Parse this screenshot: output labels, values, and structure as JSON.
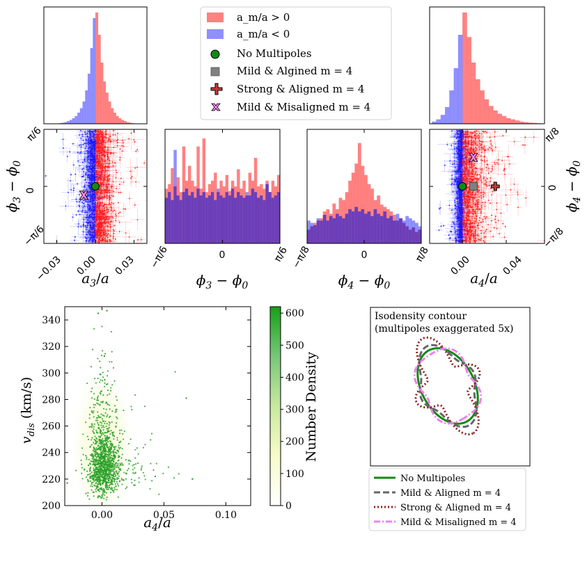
{
  "colors": {
    "pos": "#ff6b6b",
    "neg": "#7b7bff",
    "overlap": "#6a3cb5",
    "pos_points": "#ff1a1a",
    "neg_points": "#1a1aff",
    "green": "#138a13",
    "gray": "#808080",
    "darkred": "#8b2020",
    "violet": "#ee82ee",
    "scatter": "#2ca02c"
  },
  "legend_top": {
    "items": [
      {
        "label": "a_m/a > 0",
        "marker": "red-patch"
      },
      {
        "label": "a_m/a < 0",
        "marker": "blue-patch"
      },
      {
        "label": "No Multipoles",
        "marker": "green-circle"
      },
      {
        "label": "Mild & Algined m = 4",
        "marker": "gray-square"
      },
      {
        "label": "Strong & Aligned m = 4",
        "marker": "darkred-plus"
      },
      {
        "label": "Mild & Misaligned m = 4",
        "marker": "violet-x"
      }
    ]
  },
  "chart_data": [
    {
      "id": "hist_a3",
      "type": "bar",
      "title": "",
      "series": [
        {
          "name": "a_m/a > 0",
          "x": [
            0.0,
            0.002,
            0.004,
            0.006,
            0.008,
            0.01,
            0.012,
            0.014,
            0.016,
            0.018,
            0.02,
            0.022,
            0.024,
            0.026,
            0.028,
            0.03
          ],
          "values": [
            1.0,
            0.8,
            0.55,
            0.38,
            0.28,
            0.2,
            0.14,
            0.1,
            0.07,
            0.05,
            0.035,
            0.025,
            0.015,
            0.01,
            0.006,
            0.003
          ]
        },
        {
          "name": "a_m/a < 0",
          "x": [
            -0.002,
            -0.004,
            -0.006,
            -0.008,
            -0.01,
            -0.012,
            -0.014,
            -0.016,
            -0.018,
            -0.02,
            -0.022,
            -0.024,
            -0.026,
            -0.028,
            -0.03
          ],
          "values": [
            0.95,
            0.68,
            0.45,
            0.3,
            0.2,
            0.14,
            0.1,
            0.07,
            0.05,
            0.035,
            0.025,
            0.015,
            0.01,
            0.006,
            0.003
          ]
        }
      ],
      "xlim": [
        -0.04,
        0.04
      ]
    },
    {
      "id": "hist_a4",
      "type": "bar",
      "title": "",
      "series": [
        {
          "name": "a_m/a > 0",
          "x": [
            0.0,
            0.004,
            0.008,
            0.012,
            0.016,
            0.02,
            0.024,
            0.028,
            0.032,
            0.036,
            0.04,
            0.044,
            0.048,
            0.052,
            0.056,
            0.06,
            0.064,
            0.068,
            0.072
          ],
          "values": [
            1.0,
            0.78,
            0.55,
            0.4,
            0.3,
            0.22,
            0.16,
            0.12,
            0.09,
            0.07,
            0.05,
            0.04,
            0.03,
            0.02,
            0.015,
            0.01,
            0.008,
            0.005,
            0.003
          ]
        },
        {
          "name": "a_m/a < 0",
          "x": [
            -0.004,
            -0.008,
            -0.012,
            -0.016,
            -0.02,
            -0.024,
            -0.028
          ],
          "values": [
            0.8,
            0.5,
            0.3,
            0.15,
            0.08,
            0.04,
            0.02
          ]
        }
      ],
      "xlim": [
        -0.03,
        0.075
      ]
    },
    {
      "id": "scatter_a3_phi3",
      "type": "scatter",
      "xlabel": "a_3/a",
      "ylabel": "φ_3 − φ_0",
      "xlim": [
        -0.04,
        0.04
      ],
      "ylim": [
        -0.5236,
        0.5236
      ],
      "xticks": [
        "−0.03",
        "0.00",
        "0.03"
      ],
      "yticks": [
        "−π/6",
        "0",
        "π/6"
      ],
      "markers": [
        {
          "name": "No Multipoles",
          "x": 0.0,
          "y": 0.0,
          "marker": "green-circle"
        },
        {
          "name": "Mild & Misaligned m = 4",
          "x": -0.009,
          "y": -0.08,
          "marker": "violet-x"
        }
      ]
    },
    {
      "id": "hist_phi3",
      "type": "bar",
      "xlabel": "φ_3 − φ_0",
      "xlim": [
        -0.5236,
        0.5236
      ],
      "xticks": [
        "−π/6",
        "0",
        "π/6"
      ],
      "series": [
        {
          "name": "a_m/a > 0",
          "values": [
            0.48,
            0.52,
            0.66,
            0.5,
            0.58,
            0.45,
            0.85,
            0.55,
            0.68,
            0.55,
            0.5,
            0.85,
            0.48,
            0.92,
            0.45,
            0.52,
            0.55,
            0.62,
            0.45,
            0.55,
            0.5,
            0.6,
            0.46,
            0.55,
            0.5,
            0.65,
            0.48,
            0.55,
            0.42,
            0.62,
            0.55,
            0.75,
            0.5,
            0.52,
            0.48,
            0.55,
            0.45,
            0.55,
            0.5,
            0.6
          ]
        },
        {
          "name": "a_m/a < 0",
          "values": [
            0.4,
            0.45,
            0.38,
            0.82,
            0.42,
            0.38,
            0.45,
            0.48,
            0.42,
            0.45,
            0.4,
            0.48,
            0.42,
            0.45,
            0.4,
            0.42,
            0.45,
            0.38,
            0.48,
            0.42,
            0.4,
            0.45,
            0.42,
            0.48,
            0.4,
            0.45,
            0.42,
            0.4,
            0.45,
            0.42,
            0.48,
            0.45,
            0.4,
            0.42,
            0.38,
            0.52,
            0.45,
            0.4,
            0.42,
            0.45
          ]
        }
      ]
    },
    {
      "id": "hist_phi4",
      "type": "bar",
      "xlabel": "φ_4 − φ_0",
      "xlim": [
        -0.3927,
        0.3927
      ],
      "xticks": [
        "−π/8",
        "0",
        "π/8"
      ],
      "series": [
        {
          "name": "a_m/a > 0",
          "values": [
            0.12,
            0.15,
            0.18,
            0.2,
            0.22,
            0.28,
            0.3,
            0.26,
            0.35,
            0.3,
            0.4,
            0.38,
            0.45,
            0.55,
            0.62,
            0.7,
            0.88,
            0.68,
            0.6,
            0.52,
            0.48,
            0.38,
            0.42,
            0.34,
            0.32,
            0.3,
            0.28,
            0.25,
            0.2,
            0.22,
            0.18,
            0.15,
            0.12,
            0.14,
            0.1,
            0.12
          ]
        },
        {
          "name": "a_m/a < 0",
          "values": [
            0.2,
            0.18,
            0.16,
            0.22,
            0.2,
            0.25,
            0.2,
            0.24,
            0.22,
            0.26,
            0.24,
            0.22,
            0.26,
            0.3,
            0.28,
            0.32,
            0.28,
            0.3,
            0.26,
            0.28,
            0.24,
            0.3,
            0.26,
            0.24,
            0.28,
            0.22,
            0.24,
            0.2,
            0.26,
            0.22,
            0.2,
            0.24,
            0.22,
            0.2,
            0.18,
            0.15
          ]
        }
      ]
    },
    {
      "id": "scatter_a4_phi4",
      "type": "scatter",
      "xlabel": "a_4/a",
      "ylabel": "φ_4 − φ_0",
      "xlim": [
        -0.03,
        0.075
      ],
      "ylim": [
        -0.3927,
        0.3927
      ],
      "xticks": [
        "0.00",
        "0.04"
      ],
      "yticks": [
        "−π/8",
        "0",
        "π/8"
      ],
      "markers": [
        {
          "name": "No Multipoles",
          "x": 0.0,
          "y": 0.0,
          "marker": "green-circle"
        },
        {
          "name": "Mild & Algined m = 4",
          "x": 0.01,
          "y": 0.0,
          "marker": "gray-square"
        },
        {
          "name": "Strong & Aligned m = 4",
          "x": 0.03,
          "y": 0.0,
          "marker": "darkred-plus"
        },
        {
          "name": "Mild & Misaligned m = 4",
          "x": 0.01,
          "y": 0.2,
          "marker": "violet-x"
        }
      ]
    },
    {
      "id": "scatter_a4_vdis",
      "type": "scatter",
      "xlabel": "a_4/a",
      "ylabel": "v_dis (km/s)",
      "xlim": [
        -0.03,
        0.12
      ],
      "ylim": [
        200,
        350
      ],
      "xticks": [
        "0.00",
        "0.05",
        "0.10"
      ],
      "yticks": [
        "200",
        "220",
        "240",
        "260",
        "280",
        "300",
        "320",
        "340"
      ],
      "colorbar": {
        "label": "Number Density",
        "ticks": [
          "0",
          "100",
          "200",
          "300",
          "400",
          "500",
          "600"
        ],
        "range": [
          0,
          620
        ]
      },
      "notable_points": [
        {
          "x": 0.004,
          "y": 347
        },
        {
          "x": -0.003,
          "y": 345
        },
        {
          "x": 0.068,
          "y": 281
        },
        {
          "x": 0.073,
          "y": 220
        },
        {
          "x": -0.028,
          "y": 217
        },
        {
          "x": 0.043,
          "y": 222
        }
      ]
    },
    {
      "id": "contour",
      "type": "line",
      "title": "Isodensity contour",
      "subtitle": "(multipoles exaggerated 5x)",
      "series": [
        {
          "name": "No Multipoles",
          "a3": 0,
          "a4": 0,
          "phi4": 0
        },
        {
          "name": "Mild & Aligned m = 4",
          "a3": 0,
          "a4": 0.05,
          "phi4": 0
        },
        {
          "name": "Strong & Aligned m = 4",
          "a3": 0,
          "a4": 0.15,
          "phi4": 0
        },
        {
          "name": "Mild & Misaligned m = 4",
          "a3": 0,
          "a4": 0.05,
          "phi4": 0.3
        }
      ]
    }
  ],
  "bottom_legend": {
    "items": [
      {
        "label": "No Multipoles",
        "style": "solid-green"
      },
      {
        "label": "Mild & Aligned m = 4",
        "style": "dashed-gray"
      },
      {
        "label": "Strong & Aligned m = 4",
        "style": "dotted-darkred"
      },
      {
        "label": "Mild & Misaligned m = 4",
        "style": "dashdot-violet"
      }
    ]
  }
}
